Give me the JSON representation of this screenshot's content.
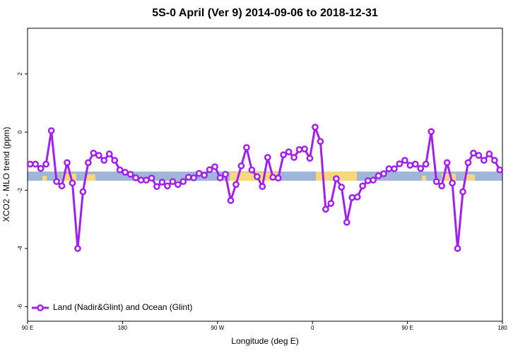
{
  "chart_data": {
    "type": "line",
    "title": "5S-0 April (Ver 9)   2014-09-06 to 2018-12-31",
    "x_label": "Longitude (deg E)",
    "y_label": "XCO2 - MLO trend (ppm)",
    "x": [
      92.5,
      97.5,
      102.5,
      107.5,
      112.5,
      117.5,
      122.5,
      127.5,
      132.5,
      137.5,
      142.5,
      147.5,
      152.5,
      157.5,
      162.5,
      167.5,
      172.5,
      177.5,
      182.5,
      187.5,
      192.5,
      197.5,
      202.5,
      207.5,
      212.5,
      217.5,
      222.5,
      227.5,
      232.5,
      237.5,
      242.5,
      247.5,
      252.5,
      257.5,
      262.5,
      267.5,
      272.5,
      277.5,
      282.5,
      287.5,
      292.5,
      297.5,
      302.5,
      307.5,
      312.5,
      317.5,
      322.5,
      327.5,
      332.5,
      337.5,
      342.5,
      347.5,
      352.5,
      357.5,
      362.5,
      367.5,
      372.5,
      377.5,
      382.5,
      387.5,
      392.5,
      397.5,
      402.5,
      407.5,
      412.5,
      417.5,
      422.5,
      427.5,
      432.5,
      437.5,
      442.5,
      447.5,
      452.5,
      457.5,
      462.5,
      467.5,
      472.5,
      477.5,
      482.5,
      487.5,
      492.5,
      497.5,
      502.5,
      507.5,
      512.5,
      517.5,
      522.5,
      527.5,
      532.5,
      537.5
    ],
    "series": [
      {
        "name": "Land (Nadir&Glint) and Ocean (Glint)",
        "color": "#a020f0",
        "values": [
          -1.1,
          -1.1,
          -1.25,
          -1.1,
          0.05,
          -1.7,
          -1.85,
          -1.05,
          -1.75,
          -4.0,
          -2.05,
          -1.05,
          -0.72,
          -0.8,
          -0.97,
          -0.75,
          -0.97,
          -1.3,
          -1.38,
          -1.45,
          -1.57,
          -1.65,
          -1.65,
          -1.58,
          -1.87,
          -1.72,
          -1.85,
          -1.7,
          -1.8,
          -1.7,
          -1.55,
          -1.57,
          -1.42,
          -1.48,
          -1.29,
          -1.19,
          -1.57,
          -1.45,
          -2.35,
          -1.8,
          -1.16,
          -0.53,
          -1.3,
          -1.53,
          -1.87,
          -0.87,
          -1.55,
          -1.58,
          -0.78,
          -0.68,
          -0.87,
          -0.6,
          -0.58,
          -0.9,
          0.17,
          -0.32,
          -2.65,
          -2.45,
          -1.6,
          -1.89,
          -3.1,
          -2.25,
          -2.23,
          -1.85,
          -1.67,
          -1.65,
          -1.5,
          -1.43,
          -1.26,
          -1.26,
          -1.09,
          -0.97,
          -1.14,
          -1.1,
          -1.25,
          -1.1,
          0.02,
          -1.7,
          -1.85,
          -1.05,
          -1.75,
          -4.0,
          -2.05,
          -1.05,
          -0.72,
          -0.8,
          -0.97,
          -0.75,
          -0.97,
          -1.3
        ]
      }
    ],
    "xlim": [
      90,
      540
    ],
    "xticks": [
      {
        "value": 90,
        "label": "90 E"
      },
      180,
      {
        "value": 270,
        "label": "90 W"
      },
      {
        "value": 360,
        "label": "0"
      },
      {
        "value": 450,
        "label": "90 E"
      },
      {
        "value": 540,
        "label": "180"
      }
    ],
    "ylim": [
      -6.5,
      3.57
    ],
    "yticks": [
      -6,
      -4,
      -2,
      0,
      2
    ],
    "legend": "bottom-left"
  }
}
